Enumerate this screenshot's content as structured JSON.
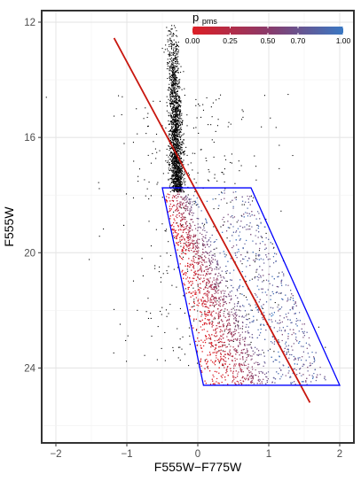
{
  "chart_data": {
    "type": "scatter",
    "title": "",
    "xlabel": "F555W−F775W",
    "ylabel": "F555W",
    "xlim": [
      -2.2,
      2.2
    ],
    "ylim": [
      26.6,
      11.6
    ],
    "y_inverted": true,
    "grid": true,
    "x_ticks": [
      -2,
      -1,
      0,
      1,
      2
    ],
    "x_tick_labels": [
      "−2",
      "−1",
      "0",
      "1",
      "2"
    ],
    "y_ticks": [
      12,
      16,
      20,
      24
    ],
    "y_tick_labels": [
      "12",
      "16",
      "20",
      "24"
    ],
    "legend": {
      "title_main": "p",
      "title_sub": "pms",
      "placement": "top-right",
      "colorbar_ticks": [
        0.0,
        0.25,
        0.5,
        0.7,
        1.0
      ],
      "colorbar_tick_labels": [
        "0.00",
        "0.25",
        "0.50",
        "0.70",
        "1.00"
      ],
      "color_low": "#dc1e25",
      "color_high": "#3a78c3"
    },
    "series": [
      {
        "kind": "points",
        "color": "#000000",
        "description_groups": {
          "upper_main_sequence": {
            "x_center": -0.3,
            "y_range": [
              12.0,
              17.9
            ]
          },
          "field_stars": {
            "x_range": [
              -1.7,
              1.8
            ],
            "y_range": [
              14.5,
              24.0
            ]
          }
        }
      },
      {
        "kind": "points_colored_by_ppms",
        "color_scale": [
          "#dc1e25",
          "#3a78c3"
        ],
        "region": {
          "x_range": [
            -0.5,
            1.9
          ],
          "y_range": [
            17.8,
            24.6
          ]
        }
      },
      {
        "kind": "line",
        "color": "#c8170f",
        "x": [
          -1.18,
          1.58
        ],
        "y": [
          12.55,
          25.2
        ]
      },
      {
        "kind": "polygon",
        "color": "#0000ff",
        "x": [
          -0.5,
          0.75,
          2.0,
          0.08
        ],
        "y": [
          17.75,
          17.75,
          24.6,
          24.6
        ]
      }
    ]
  }
}
